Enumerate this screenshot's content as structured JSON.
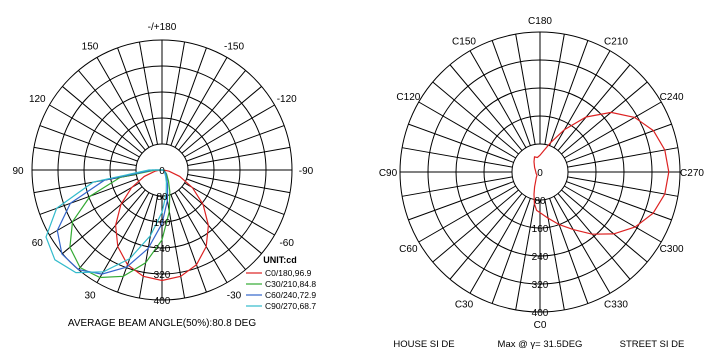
{
  "chart_data": [
    {
      "type": "polar",
      "angle_labels": [
        {
          "text": "-/+180",
          "angle": 180
        },
        {
          "text": "150",
          "angle": 150
        },
        {
          "text": "120",
          "angle": 120
        },
        {
          "text": "90",
          "angle": 90
        },
        {
          "text": "60",
          "angle": 60
        },
        {
          "text": "30",
          "angle": 30
        },
        {
          "text": "-30",
          "angle": -30
        },
        {
          "text": "-60",
          "angle": -60
        },
        {
          "text": "-90",
          "angle": -90
        },
        {
          "text": "-120",
          "angle": -120
        },
        {
          "text": "-150",
          "angle": -150
        }
      ],
      "radial_max": 400,
      "radial_labels": [
        "0",
        "80",
        "160",
        "240",
        "320",
        "400"
      ],
      "unit_label": "UNIT:cd",
      "series": [
        {
          "name": "C0/180,96.9",
          "color": "#dd2222",
          "points": [
            [
              0,
              340
            ],
            [
              10,
              332
            ],
            [
              20,
              310
            ],
            [
              30,
              272
            ],
            [
              40,
              222
            ],
            [
              50,
              165
            ],
            [
              60,
              108
            ],
            [
              70,
              58
            ],
            [
              80,
              22
            ],
            [
              88,
              6
            ],
            [
              -10,
              332
            ],
            [
              -20,
              310
            ],
            [
              -30,
              272
            ],
            [
              -40,
              222
            ],
            [
              -50,
              165
            ],
            [
              -60,
              108
            ],
            [
              -70,
              58
            ],
            [
              -80,
              22
            ],
            [
              -88,
              6
            ]
          ]
        },
        {
          "name": "C30/210,84.8",
          "color": "#33aa33",
          "points": [
            [
              90,
              2
            ],
            [
              70,
              8
            ],
            [
              50,
              18
            ],
            [
              30,
              40
            ],
            [
              20,
              70
            ],
            [
              10,
              130
            ],
            [
              0,
              215
            ],
            [
              -10,
              290
            ],
            [
              -20,
              348
            ],
            [
              -30,
              382
            ],
            [
              -40,
              392
            ],
            [
              -50,
              370
            ],
            [
              -60,
              318
            ],
            [
              -70,
              235
            ],
            [
              -80,
              130
            ],
            [
              -90,
              20
            ]
          ]
        },
        {
          "name": "C60/240,72.9",
          "color": "#3366cc",
          "points": [
            [
              90,
              2
            ],
            [
              70,
              6
            ],
            [
              50,
              14
            ],
            [
              30,
              28
            ],
            [
              20,
              50
            ],
            [
              10,
              95
            ],
            [
              0,
              165
            ],
            [
              -10,
              245
            ],
            [
              -20,
              318
            ],
            [
              -30,
              370
            ],
            [
              -40,
              400
            ],
            [
              -50,
              402
            ],
            [
              -60,
              372
            ],
            [
              -70,
              300
            ],
            [
              -80,
              180
            ],
            [
              -90,
              30
            ]
          ]
        },
        {
          "name": "C90/270,68.7",
          "color": "#33bbcc",
          "points": [
            [
              90,
              2
            ],
            [
              70,
              5
            ],
            [
              50,
              10
            ],
            [
              30,
              22
            ],
            [
              20,
              40
            ],
            [
              10,
              75
            ],
            [
              0,
              130
            ],
            [
              -10,
              205
            ],
            [
              -20,
              290
            ],
            [
              -30,
              362
            ],
            [
              -40,
              412
            ],
            [
              -50,
              430
            ],
            [
              -60,
              412
            ],
            [
              -70,
              345
            ],
            [
              -80,
              215
            ],
            [
              -90,
              40
            ]
          ]
        }
      ],
      "caption": "AVERAGE BEAM ANGLE(50%):80.8 DEG"
    },
    {
      "type": "polar",
      "angle_labels": [
        {
          "text": "C180",
          "angle": 180
        },
        {
          "text": "C150",
          "angle": 150
        },
        {
          "text": "C120",
          "angle": 120
        },
        {
          "text": "C90",
          "angle": 90
        },
        {
          "text": "C60",
          "angle": 60
        },
        {
          "text": "C30",
          "angle": 30
        },
        {
          "text": "C0",
          "angle": 0
        },
        {
          "text": "C330",
          "angle": -30
        },
        {
          "text": "C300",
          "angle": -60
        },
        {
          "text": "C270",
          "angle": -90
        },
        {
          "text": "C240",
          "angle": -120
        },
        {
          "text": "C210",
          "angle": -150
        }
      ],
      "radial_max": 400,
      "radial_labels": [
        "0",
        "80",
        "160",
        "240",
        "320",
        "400"
      ],
      "series": [
        {
          "color": "#dd2222",
          "points": [
            [
              0,
              116
            ],
            [
              5,
              110
            ],
            [
              10,
              92
            ],
            [
              15,
              66
            ],
            [
              20,
              45
            ],
            [
              25,
              30
            ],
            [
              30,
              22
            ],
            [
              35,
              18
            ],
            [
              40,
              14
            ],
            [
              50,
              12
            ],
            [
              70,
              12
            ],
            [
              90,
              12
            ],
            [
              110,
              14
            ],
            [
              130,
              20
            ],
            [
              150,
              34
            ],
            [
              160,
              46
            ],
            [
              170,
              42
            ],
            [
              180,
              48
            ],
            [
              190,
              62
            ],
            [
              200,
              90
            ],
            [
              210,
              140
            ],
            [
              220,
              205
            ],
            [
              230,
              265
            ],
            [
              240,
              312
            ],
            [
              250,
              345
            ],
            [
              260,
              362
            ],
            [
              270,
              368
            ],
            [
              280,
              362
            ],
            [
              290,
              344
            ],
            [
              300,
              314
            ],
            [
              310,
              275
            ],
            [
              320,
              232
            ],
            [
              330,
              190
            ],
            [
              340,
              160
            ],
            [
              350,
              134
            ],
            [
              360,
              116
            ]
          ]
        }
      ],
      "footer": {
        "house_side": "HOUSE  SI DE",
        "max_text": "Max @ γ= 31.5DEG",
        "street_side": "STREET  SI DE"
      }
    }
  ]
}
